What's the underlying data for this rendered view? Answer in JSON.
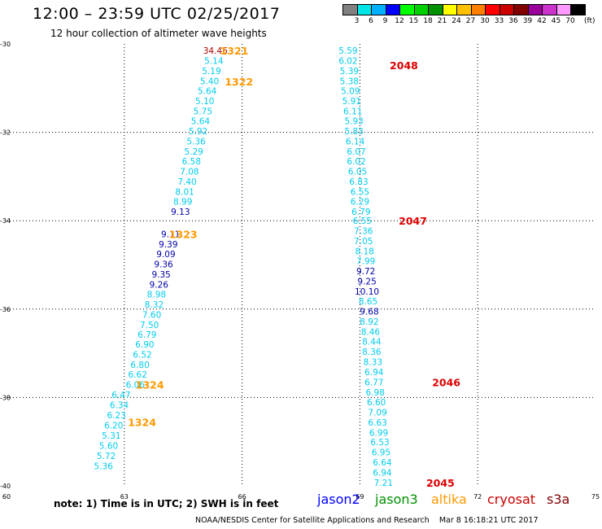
{
  "header": {
    "title": "12:00 – 23:59 UTC 02/25/2017",
    "subtitle": "12 hour collection of altimeter wave heights"
  },
  "color_scale": {
    "labels": [
      "3",
      "6",
      "9",
      "12",
      "15",
      "18",
      "21",
      "24",
      "27",
      "30",
      "33",
      "36",
      "39",
      "42",
      "45",
      "70"
    ],
    "unit": "(ft)",
    "colors": [
      "#808080",
      "#00e5e5",
      "#00b0ff",
      "#0000ff",
      "#00ff00",
      "#00d000",
      "#009000",
      "#ffff00",
      "#ffc000",
      "#ff8000",
      "#ff0000",
      "#cc0000",
      "#800000",
      "#990099",
      "#cc33cc",
      "#ff99ff",
      "#000000"
    ]
  },
  "chart_data": {
    "type": "scatter",
    "x_ticks": [
      "60",
      "63",
      "66",
      "69",
      "72",
      "75"
    ],
    "y_ticks": [
      "-30",
      "-32",
      "-34",
      "-36",
      "-38",
      "-40"
    ],
    "xlim": [
      60,
      75
    ],
    "ylim": [
      -40,
      -30
    ],
    "grid": true,
    "passes": [
      {
        "label": "1321",
        "satellite": "altika",
        "lon": 65.8,
        "lat": -30.15,
        "observations": [
          {
            "lon": 65.32,
            "lat": -30.15,
            "swh": "34.46",
            "satellite": "cryosat"
          },
          {
            "lon": 65.28,
            "lat": -30.38,
            "swh": "5.14",
            "satellite": "altika"
          },
          {
            "lon": 65.22,
            "lat": -30.61,
            "swh": "5.19",
            "satellite": "altika"
          },
          {
            "lon": 65.17,
            "lat": -30.84,
            "swh": "5.40",
            "satellite": "altika"
          },
          {
            "lon": 65.11,
            "lat": -31.06,
            "swh": "5.64",
            "satellite": "altika"
          },
          {
            "lon": 65.05,
            "lat": -31.29,
            "swh": "5.10",
            "satellite": "altika"
          },
          {
            "lon": 65.0,
            "lat": -31.52,
            "swh": "5.75",
            "satellite": "altika"
          },
          {
            "lon": 64.94,
            "lat": -31.74,
            "swh": "5.64",
            "satellite": "altika"
          },
          {
            "lon": 64.88,
            "lat": -31.97,
            "swh": "5.92",
            "satellite": "altika"
          },
          {
            "lon": 64.83,
            "lat": -32.2,
            "swh": "5.36",
            "satellite": "altika"
          },
          {
            "lon": 64.77,
            "lat": -32.43,
            "swh": "5.29",
            "satellite": "altika"
          },
          {
            "lon": 64.71,
            "lat": -32.65,
            "swh": "6.58",
            "satellite": "altika"
          },
          {
            "lon": 64.66,
            "lat": -32.88,
            "swh": "7.08",
            "satellite": "altika"
          },
          {
            "lon": 64.6,
            "lat": -33.11,
            "swh": "7.40",
            "satellite": "altika"
          },
          {
            "lon": 64.54,
            "lat": -33.34,
            "swh": "8.01",
            "satellite": "altika"
          },
          {
            "lon": 64.49,
            "lat": -33.56,
            "swh": "8.99",
            "satellite": "altika"
          },
          {
            "lon": 64.43,
            "lat": -33.79,
            "swh": "9.13",
            "satellite": "jason2"
          }
        ]
      },
      {
        "label": "1322",
        "satellite": "altika",
        "lon": 65.92,
        "lat": -30.85,
        "observations": []
      },
      {
        "label": "1323",
        "satellite": "altika",
        "lon": 64.5,
        "lat": -34.3,
        "observations": [
          {
            "lon": 64.18,
            "lat": -34.3,
            "swh": "9.11",
            "satellite": "jason2"
          },
          {
            "lon": 64.12,
            "lat": -34.53,
            "swh": "9.39",
            "satellite": "jason2"
          },
          {
            "lon": 64.06,
            "lat": -34.75,
            "swh": "9.09",
            "satellite": "jason2"
          },
          {
            "lon": 64.0,
            "lat": -34.98,
            "swh": "9.36",
            "satellite": "jason2"
          },
          {
            "lon": 63.94,
            "lat": -35.21,
            "swh": "9.35",
            "satellite": "jason2"
          },
          {
            "lon": 63.88,
            "lat": -35.44,
            "swh": "9.26",
            "satellite": "jason2"
          },
          {
            "lon": 63.82,
            "lat": -35.66,
            "swh": "8.98",
            "satellite": "altika"
          },
          {
            "lon": 63.76,
            "lat": -35.89,
            "swh": "8.32",
            "satellite": "altika"
          },
          {
            "lon": 63.7,
            "lat": -36.12,
            "swh": "7.60",
            "satellite": "altika"
          },
          {
            "lon": 63.64,
            "lat": -36.35,
            "swh": "7.50",
            "satellite": "altika"
          },
          {
            "lon": 63.58,
            "lat": -36.57,
            "swh": "6.79",
            "satellite": "altika"
          },
          {
            "lon": 63.52,
            "lat": -36.8,
            "swh": "6.90",
            "satellite": "altika"
          },
          {
            "lon": 63.46,
            "lat": -37.03,
            "swh": "6.52",
            "satellite": "altika"
          },
          {
            "lon": 63.4,
            "lat": -37.26,
            "swh": "6.80",
            "satellite": "altika"
          },
          {
            "lon": 63.34,
            "lat": -37.48,
            "swh": "6.62",
            "satellite": "altika"
          },
          {
            "lon": 63.28,
            "lat": -37.71,
            "swh": "6.06",
            "satellite": "altika"
          }
        ]
      },
      {
        "label": "1324",
        "satellite": "altika",
        "lon": 63.65,
        "lat": -37.71,
        "observations": []
      },
      {
        "label": "1324",
        "satellite": "altika",
        "lon": 63.45,
        "lat": -38.55,
        "observations": [
          {
            "lon": 62.92,
            "lat": -37.94,
            "swh": "6.47",
            "satellite": "altika"
          },
          {
            "lon": 62.87,
            "lat": -38.17,
            "swh": "6.34",
            "satellite": "altika"
          },
          {
            "lon": 62.8,
            "lat": -38.4,
            "swh": "6.23",
            "satellite": "altika"
          },
          {
            "lon": 62.73,
            "lat": -38.63,
            "swh": "6.20",
            "satellite": "altika"
          },
          {
            "lon": 62.67,
            "lat": -38.86,
            "swh": "5.31",
            "satellite": "altika"
          },
          {
            "lon": 62.6,
            "lat": -39.09,
            "swh": "5.60",
            "satellite": "altika"
          },
          {
            "lon": 62.54,
            "lat": -39.32,
            "swh": "5.72",
            "satellite": "altika"
          },
          {
            "lon": 62.47,
            "lat": -39.55,
            "swh": "5.36",
            "satellite": "altika"
          }
        ]
      },
      {
        "label": "2048",
        "satellite": "cryosat",
        "lon": 70.12,
        "lat": -30.48,
        "observations": [
          {
            "lon": 68.7,
            "lat": -30.15,
            "swh": "5.59",
            "satellite": "altika"
          },
          {
            "lon": 68.7,
            "lat": -30.38,
            "swh": "6.02",
            "satellite": "altika"
          },
          {
            "lon": 68.73,
            "lat": -30.61,
            "swh": "5.39",
            "satellite": "altika"
          },
          {
            "lon": 68.73,
            "lat": -30.84,
            "swh": "5.38",
            "satellite": "altika"
          },
          {
            "lon": 68.76,
            "lat": -31.06,
            "swh": "5.09",
            "satellite": "altika"
          },
          {
            "lon": 68.79,
            "lat": -31.29,
            "swh": "5.91",
            "satellite": "altika"
          },
          {
            "lon": 68.82,
            "lat": -31.52,
            "swh": "6.11",
            "satellite": "altika"
          },
          {
            "lon": 68.85,
            "lat": -31.74,
            "swh": "5.93",
            "satellite": "altika"
          },
          {
            "lon": 68.85,
            "lat": -31.97,
            "swh": "5.83",
            "satellite": "altika"
          },
          {
            "lon": 68.88,
            "lat": -32.2,
            "swh": "6.14",
            "satellite": "altika"
          },
          {
            "lon": 68.91,
            "lat": -32.43,
            "swh": "6.07",
            "satellite": "altika"
          },
          {
            "lon": 68.91,
            "lat": -32.65,
            "swh": "6.02",
            "satellite": "altika"
          },
          {
            "lon": 68.94,
            "lat": -32.88,
            "swh": "6.05",
            "satellite": "altika"
          },
          {
            "lon": 68.97,
            "lat": -33.11,
            "swh": "6.83",
            "satellite": "altika"
          },
          {
            "lon": 69.0,
            "lat": -33.34,
            "swh": "6.55",
            "satellite": "altika"
          },
          {
            "lon": 69.0,
            "lat": -33.56,
            "swh": "6.29",
            "satellite": "altika"
          },
          {
            "lon": 69.03,
            "lat": -33.79,
            "swh": "6.79",
            "satellite": "altika"
          }
        ]
      },
      {
        "label": "2047",
        "satellite": "cryosat",
        "lon": 70.35,
        "lat": -34.0,
        "observations": [
          {
            "lon": 69.06,
            "lat": -34.0,
            "swh": "6.55",
            "satellite": "altika"
          },
          {
            "lon": 69.09,
            "lat": -34.23,
            "swh": "7.36",
            "satellite": "altika"
          },
          {
            "lon": 69.09,
            "lat": -34.46,
            "swh": "7.05",
            "satellite": "altika"
          },
          {
            "lon": 69.12,
            "lat": -34.69,
            "swh": "8.18",
            "satellite": "altika"
          },
          {
            "lon": 69.15,
            "lat": -34.91,
            "swh": "7.99",
            "satellite": "altika"
          },
          {
            "lon": 69.15,
            "lat": -35.14,
            "swh": "9.72",
            "satellite": "jason2"
          },
          {
            "lon": 69.18,
            "lat": -35.37,
            "swh": "9.25",
            "satellite": "jason2"
          },
          {
            "lon": 69.18,
            "lat": -35.6,
            "swh": "10.10",
            "satellite": "jason2"
          },
          {
            "lon": 69.21,
            "lat": -35.82,
            "swh": "8.65",
            "satellite": "altika"
          },
          {
            "lon": 69.24,
            "lat": -36.05,
            "swh": "9.68",
            "satellite": "jason2"
          },
          {
            "lon": 69.24,
            "lat": -36.28,
            "swh": "8.92",
            "satellite": "altika"
          },
          {
            "lon": 69.27,
            "lat": -36.51,
            "swh": "8.46",
            "satellite": "altika"
          },
          {
            "lon": 69.3,
            "lat": -36.73,
            "swh": "8.44",
            "satellite": "altika"
          },
          {
            "lon": 69.3,
            "lat": -36.96,
            "swh": "8.36",
            "satellite": "altika"
          },
          {
            "lon": 69.33,
            "lat": -37.19,
            "swh": "8.33",
            "satellite": "altika"
          },
          {
            "lon": 69.36,
            "lat": -37.42,
            "swh": "6.94",
            "satellite": "altika"
          }
        ]
      },
      {
        "label": "2046",
        "satellite": "cryosat",
        "lon": 71.2,
        "lat": -37.65,
        "observations": [
          {
            "lon": 69.36,
            "lat": -37.65,
            "swh": "6.77",
            "satellite": "altika"
          },
          {
            "lon": 69.39,
            "lat": -37.88,
            "swh": "6.98",
            "satellite": "altika"
          },
          {
            "lon": 69.42,
            "lat": -38.1,
            "swh": "6.60",
            "satellite": "altika"
          },
          {
            "lon": 69.45,
            "lat": -38.33,
            "swh": "7.09",
            "satellite": "altika"
          },
          {
            "lon": 69.45,
            "lat": -38.56,
            "swh": "6.63",
            "satellite": "altika"
          },
          {
            "lon": 69.48,
            "lat": -38.79,
            "swh": "6.99",
            "satellite": "altika"
          },
          {
            "lon": 69.51,
            "lat": -39.01,
            "swh": "6.53",
            "satellite": "altika"
          },
          {
            "lon": 69.54,
            "lat": -39.24,
            "swh": "6.95",
            "satellite": "altika"
          },
          {
            "lon": 69.57,
            "lat": -39.47,
            "swh": "6.64",
            "satellite": "altika"
          },
          {
            "lon": 69.57,
            "lat": -39.7,
            "swh": "6.94",
            "satellite": "altika"
          }
        ]
      },
      {
        "label": "2045",
        "satellite": "cryosat",
        "lon": 71.05,
        "lat": -39.93,
        "observations": [
          {
            "lon": 69.6,
            "lat": -39.93,
            "swh": "7.21",
            "satellite": "altika"
          }
        ]
      }
    ]
  },
  "note": "note:  1) Time is in UTC; 2) SWH is in feet",
  "legend": [
    {
      "name": "jason2",
      "color": "#0000ff"
    },
    {
      "name": "jason3",
      "color": "#009000"
    },
    {
      "name": "altika",
      "color": "#ff9900"
    },
    {
      "name": "cryosat",
      "color": "#cc0000"
    },
    {
      "name": "s3a",
      "color": "#800000"
    }
  ],
  "footer": {
    "credit": "NOAA/NESDIS Center for Satellite Applications and Research",
    "timestamp": "Mar  8 16:18:21 UTC 2017"
  },
  "satellite_colors": {
    "altika_obs": "#00ccee",
    "jason2_obs": "#0000aa",
    "cryosat_obs": "#aa0000",
    "altika_pass": "#ff9900",
    "cryosat_pass": "#dd0000"
  }
}
